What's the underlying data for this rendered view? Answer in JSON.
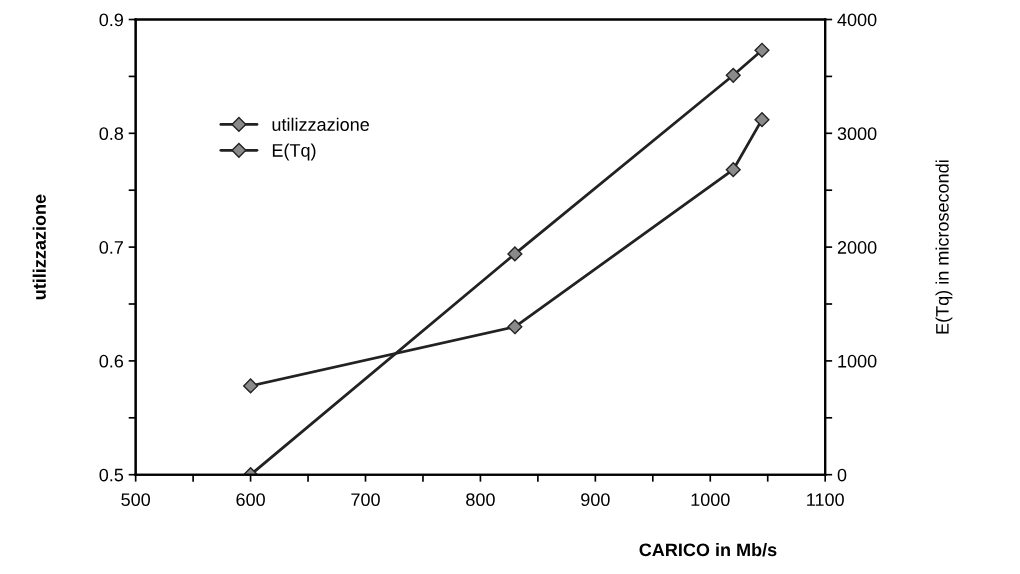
{
  "chart_data": {
    "type": "line",
    "xlabel": "CARICO in Mb/s",
    "ylabel": "utilizzazione",
    "y2label": "E(Tq) in microsecondi",
    "x": [
      600,
      830,
      1020,
      1045
    ],
    "series": [
      {
        "name": "utilizzazione",
        "color": "#222222",
        "values": [
          0.5,
          0.694,
          0.851,
          0.873
        ]
      },
      {
        "name": "E(Tq)",
        "color": "#222222",
        "axis": "y2",
        "values": [
          780,
          1300,
          2680,
          3120
        ]
      }
    ],
    "xlim": [
      500,
      1100
    ],
    "xticks": [
      500,
      {
        "value": 550,
        "label": null
      },
      600,
      {
        "value": 650,
        "label": null
      },
      700,
      {
        "value": 750,
        "label": null
      },
      800,
      {
        "value": 850,
        "label": null
      },
      900,
      {
        "value": 950,
        "label": null
      },
      1000,
      {
        "value": 1050,
        "label": null
      },
      1100
    ],
    "ylim": [
      0.5,
      0.9
    ],
    "yticks": [
      0.5,
      {
        "value": 0.55,
        "label": null
      },
      0.6,
      {
        "value": 0.65,
        "label": null
      },
      0.7,
      {
        "value": 0.75,
        "label": null
      },
      0.8,
      {
        "value": 0.85,
        "label": null
      },
      0.9
    ],
    "y2lim": [
      0,
      4000
    ],
    "y2ticks": [
      0,
      {
        "value": 500,
        "label": null
      },
      1000,
      {
        "value": 1500,
        "label": null
      },
      2000,
      {
        "value": 2500,
        "label": null
      },
      3000,
      {
        "value": 3500,
        "label": null
      },
      4000
    ],
    "marker": "diamond",
    "line_style": "solid",
    "grid": false,
    "legend": "upper left"
  }
}
